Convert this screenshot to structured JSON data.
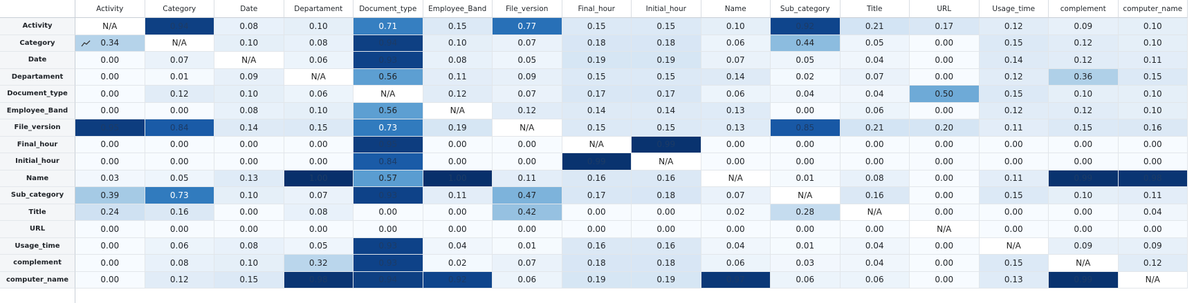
{
  "chart_data": {
    "type": "heatmap",
    "x_labels": [
      "Activity",
      "Category",
      "Date",
      "Departament",
      "Document_type",
      "Employee_Band",
      "File_version",
      "Final_hour",
      "Initial_hour",
      "Name",
      "Sub_category",
      "Title",
      "URL",
      "Usage_time",
      "complement",
      "computer_name"
    ],
    "y_labels": [
      "Activity",
      "Category",
      "Date",
      "Departament",
      "Document_type",
      "Employee_Band",
      "File_version",
      "Final_hour",
      "Initial_hour",
      "Name",
      "Sub_category",
      "Title",
      "URL",
      "Usage_time",
      "complement",
      "computer_name"
    ],
    "values": [
      [
        null,
        0.94,
        0.08,
        0.1,
        0.71,
        0.15,
        0.77,
        0.15,
        0.15,
        0.1,
        0.92,
        0.21,
        0.17,
        0.12,
        0.09,
        0.1
      ],
      [
        0.34,
        null,
        0.1,
        0.08,
        0.94,
        0.1,
        0.07,
        0.18,
        0.18,
        0.06,
        0.44,
        0.05,
        0.0,
        0.15,
        0.12,
        0.1
      ],
      [
        0.0,
        0.07,
        null,
        0.06,
        0.93,
        0.08,
        0.05,
        0.19,
        0.19,
        0.07,
        0.05,
        0.04,
        0.0,
        0.14,
        0.12,
        0.11
      ],
      [
        0.0,
        0.01,
        0.09,
        null,
        0.56,
        0.11,
        0.09,
        0.15,
        0.15,
        0.14,
        0.02,
        0.07,
        0.0,
        0.12,
        0.36,
        0.15
      ],
      [
        0.0,
        0.12,
        0.1,
        0.06,
        null,
        0.12,
        0.07,
        0.17,
        0.17,
        0.06,
        0.04,
        0.04,
        0.5,
        0.15,
        0.1,
        0.1
      ],
      [
        0.0,
        0.0,
        0.08,
        0.1,
        0.56,
        null,
        0.12,
        0.14,
        0.14,
        0.13,
        0.0,
        0.06,
        0.0,
        0.12,
        0.12,
        0.1
      ],
      [
        0.95,
        0.84,
        0.14,
        0.15,
        0.73,
        0.19,
        null,
        0.15,
        0.15,
        0.13,
        0.85,
        0.21,
        0.2,
        0.11,
        0.15,
        0.16
      ],
      [
        0.0,
        0.0,
        0.0,
        0.0,
        0.95,
        0.0,
        0.0,
        null,
        0.99,
        0.0,
        0.0,
        0.0,
        0.0,
        0.0,
        0.0,
        0.0
      ],
      [
        0.0,
        0.0,
        0.0,
        0.0,
        0.84,
        0.0,
        0.0,
        0.99,
        null,
        0.0,
        0.0,
        0.0,
        0.0,
        0.0,
        0.0,
        0.0
      ],
      [
        0.03,
        0.05,
        0.13,
        1.0,
        0.57,
        1.0,
        0.11,
        0.16,
        0.16,
        null,
        0.01,
        0.08,
        0.0,
        0.11,
        0.99,
        0.98
      ],
      [
        0.39,
        0.73,
        0.1,
        0.07,
        0.93,
        0.11,
        0.47,
        0.17,
        0.18,
        0.07,
        null,
        0.16,
        0.0,
        0.15,
        0.1,
        0.11
      ],
      [
        0.24,
        0.16,
        0.0,
        0.08,
        0.0,
        0.0,
        0.42,
        0.0,
        0.0,
        0.02,
        0.28,
        null,
        0.0,
        0.0,
        0.0,
        0.04
      ],
      [
        0.0,
        0.0,
        0.0,
        0.0,
        0.0,
        0.0,
        0.0,
        0.0,
        0.0,
        0.0,
        0.0,
        0.0,
        null,
        0.0,
        0.0,
        0.0
      ],
      [
        0.0,
        0.06,
        0.08,
        0.05,
        0.93,
        0.04,
        0.01,
        0.16,
        0.16,
        0.04,
        0.01,
        0.04,
        0.0,
        null,
        0.09,
        0.09
      ],
      [
        0.0,
        0.08,
        0.1,
        0.32,
        0.93,
        0.02,
        0.07,
        0.18,
        0.18,
        0.06,
        0.03,
        0.04,
        0.0,
        0.15,
        null,
        0.12
      ],
      [
        0.0,
        0.12,
        0.15,
        0.98,
        0.94,
        0.92,
        0.06,
        0.19,
        0.19,
        0.97,
        0.06,
        0.06,
        0.0,
        0.13,
        0.99,
        null
      ]
    ],
    "missing_label": "N/A",
    "value_format": "2 decimals",
    "color_scale": {
      "low": "#f7fbff",
      "high": "#08306b",
      "name": "Blues"
    },
    "range": [
      0,
      1
    ],
    "title": "",
    "xlabel": "",
    "ylabel": "",
    "legend": "none"
  },
  "icons": {
    "trend_icon": "trend-line-icon"
  }
}
